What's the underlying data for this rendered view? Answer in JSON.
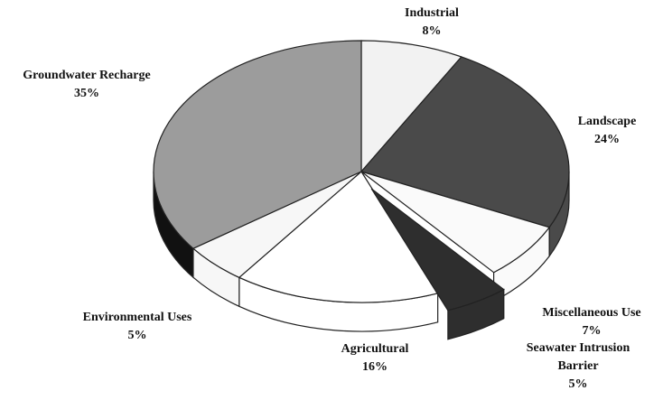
{
  "chart_data": {
    "type": "pie",
    "categories": [
      "Industrial",
      "Landscape",
      "Miscellaneous Use",
      "Seawater Intrusion Barrier",
      "Agricultural",
      "Environmental Uses",
      "Groundwater Recharge"
    ],
    "values": [
      8,
      24,
      7,
      5,
      16,
      5,
      35
    ],
    "value_labels": [
      "8%",
      "24%",
      "7%",
      "5%",
      "16%",
      "5%",
      "35%"
    ],
    "colors": [
      "#f2f2f2",
      "#4a4a4a",
      "#fafafa",
      "#2e2e2e",
      "#ffffff",
      "#f7f7f7",
      "#9c9c9c"
    ],
    "exploded": "Seawater Intrusion Barrier"
  }
}
